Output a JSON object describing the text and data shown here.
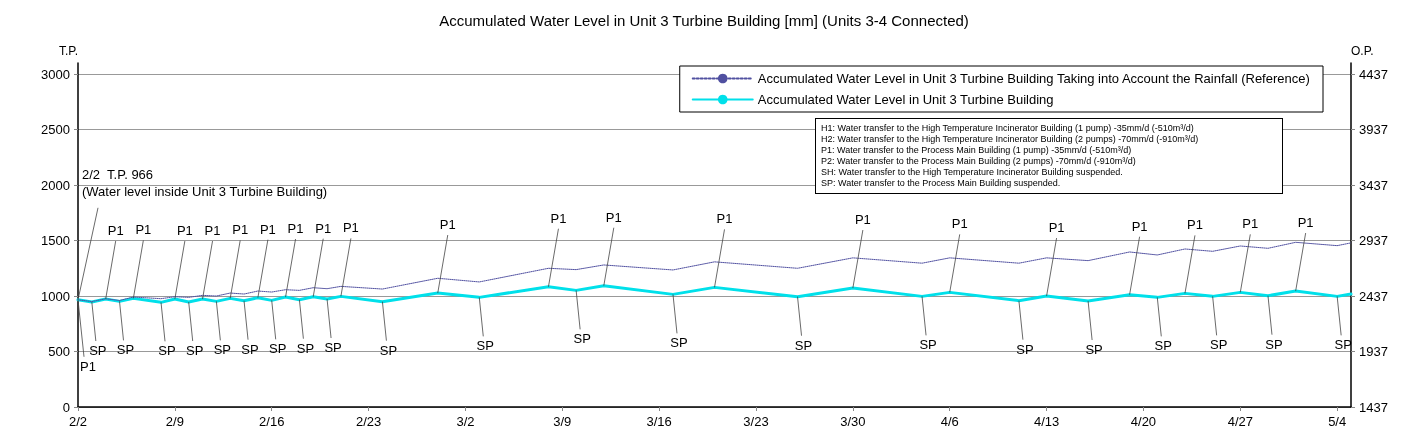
{
  "chart_data": {
    "type": "line",
    "title": "Accumulated Water Level in Unit 3 Turbine Building [mm] (Units 3-4 Connected)",
    "ylabel": "T.P.",
    "y2label": "O.P.",
    "xlim": [
      "--02-02",
      "--05-05"
    ],
    "xticks": [
      {
        "value": "--02-02",
        "label": "2/2"
      },
      {
        "value": "--02-09",
        "label": "2/9"
      },
      {
        "value": "--02-16",
        "label": "2/16"
      },
      {
        "value": "--02-23",
        "label": "2/23"
      },
      {
        "value": "--03-02",
        "label": "3/2"
      },
      {
        "value": "--03-09",
        "label": "3/9"
      },
      {
        "value": "--03-16",
        "label": "3/16"
      },
      {
        "value": "--03-23",
        "label": "3/23"
      },
      {
        "value": "--03-30",
        "label": "3/30"
      },
      {
        "value": "--04-06",
        "label": "4/6"
      },
      {
        "value": "--04-13",
        "label": "4/13"
      },
      {
        "value": "--04-20",
        "label": "4/20"
      },
      {
        "value": "--04-27",
        "label": "4/27"
      },
      {
        "value": "--05-04",
        "label": "5/4"
      }
    ],
    "ylim": [
      0,
      3100
    ],
    "yticks": [
      0,
      500,
      1000,
      1500,
      2000,
      2500,
      3000
    ],
    "y2lim": [
      1437,
      4537
    ],
    "y2ticks": [
      1437,
      1937,
      2437,
      2937,
      3437,
      3937,
      4437
    ],
    "grid": "y",
    "legend": "top right",
    "marker": "none",
    "x": [
      "--02-02",
      "--02-03",
      "--02-04",
      "--02-05",
      "--02-06",
      "--02-08",
      "--02-09",
      "--02-10",
      "--02-11",
      "--02-12",
      "--02-13",
      "--02-14",
      "--02-15",
      "--02-16",
      "--02-17",
      "--02-18",
      "--02-19",
      "--02-20",
      "--02-21",
      "--02-24",
      "--02-28",
      "--03-03",
      "--03-08",
      "--03-10",
      "--03-12",
      "--03-17",
      "--03-20",
      "--03-26",
      "--03-30",
      "--04-04",
      "--04-06",
      "--04-11",
      "--04-13",
      "--04-16",
      "--04-19",
      "--04-21",
      "--04-23",
      "--04-25",
      "--04-27",
      "--04-29",
      "--05-01",
      "--05-04",
      "--05-05"
    ],
    "series": [
      {
        "name": "Accumulated Water Level in Unit 3 Turbine Building Taking into Account the Rainfall (Reference)",
        "color": "#5050a0",
        "line_style": "dotted",
        "values": [
          966,
          950,
          975,
          960,
          991,
          976,
          994,
          988,
          1006,
          1000,
          1027,
          1018,
          1045,
          1036,
          1057,
          1051,
          1075,
          1066,
          1087,
          1063,
          1160,
          1127,
          1250,
          1238,
          1280,
          1235,
          1308,
          1250,
          1344,
          1296,
          1344,
          1296,
          1344,
          1319,
          1397,
          1370,
          1424,
          1403,
          1451,
          1430,
          1484,
          1454,
          1479
        ]
      },
      {
        "name": "Accumulated Water Level in Unit 3 Turbine Building",
        "color": "#00e0ea",
        "line_style": "solid",
        "values": [
          966,
          946,
          973,
          952,
          979,
          943,
          973,
          946,
          973,
          952,
          979,
          958,
          985,
          961,
          991,
          967,
          994,
          973,
          997,
          949,
          1027,
          988,
          1084,
          1051,
          1093,
          1015,
          1078,
          994,
          1072,
          997,
          1033,
          958,
          1000,
          955,
          1012,
          988,
          1024,
          997,
          1033,
          1003,
          1045,
          997,
          1018
        ]
      }
    ],
    "annotations": [
      {
        "text": "2/2  T.P. 966\n(Water level inside Unit 3 Turbine Building)",
        "x": "--02-02",
        "y": 966
      },
      {
        "text": "P1",
        "x": "--02-02",
        "y": 966
      },
      {
        "text": "SP",
        "x": "--02-03",
        "y": 946
      },
      {
        "text": "P1",
        "x": "--02-04",
        "y": 973
      },
      {
        "text": "SP",
        "x": "--02-05",
        "y": 952
      },
      {
        "text": "P1",
        "x": "--02-06",
        "y": 979
      },
      {
        "text": "SP",
        "x": "--02-08",
        "y": 943
      },
      {
        "text": "P1",
        "x": "--02-09",
        "y": 973
      },
      {
        "text": "SP",
        "x": "--02-10",
        "y": 946
      },
      {
        "text": "P1",
        "x": "--02-11",
        "y": 973
      },
      {
        "text": "SP",
        "x": "--02-12",
        "y": 952
      },
      {
        "text": "P1",
        "x": "--02-13",
        "y": 979
      },
      {
        "text": "SP",
        "x": "--02-14",
        "y": 958
      },
      {
        "text": "P1",
        "x": "--02-15",
        "y": 985
      },
      {
        "text": "SP",
        "x": "--02-16",
        "y": 961
      },
      {
        "text": "P1",
        "x": "--02-17",
        "y": 991
      },
      {
        "text": "SP",
        "x": "--02-18",
        "y": 967
      },
      {
        "text": "P1",
        "x": "--02-19",
        "y": 994
      },
      {
        "text": "SP",
        "x": "--02-20",
        "y": 973
      },
      {
        "text": "P1",
        "x": "--02-21",
        "y": 997
      },
      {
        "text": "SP",
        "x": "--02-24",
        "y": 949
      },
      {
        "text": "P1",
        "x": "--02-28",
        "y": 1027
      },
      {
        "text": "SP",
        "x": "--03-03",
        "y": 988
      },
      {
        "text": "P1",
        "x": "--03-08",
        "y": 1084
      },
      {
        "text": "SP",
        "x": "--03-10",
        "y": 1051
      },
      {
        "text": "P1",
        "x": "--03-12",
        "y": 1093
      },
      {
        "text": "SP",
        "x": "--03-17",
        "y": 1015
      },
      {
        "text": "P1",
        "x": "--03-20",
        "y": 1078
      },
      {
        "text": "SP",
        "x": "--03-26",
        "y": 994
      },
      {
        "text": "P1",
        "x": "--03-30",
        "y": 1072
      },
      {
        "text": "SP",
        "x": "--04-04",
        "y": 997
      },
      {
        "text": "P1",
        "x": "--04-06",
        "y": 1033
      },
      {
        "text": "SP",
        "x": "--04-11",
        "y": 958
      },
      {
        "text": "P1",
        "x": "--04-13",
        "y": 1000
      },
      {
        "text": "SP",
        "x": "--04-16",
        "y": 955
      },
      {
        "text": "P1",
        "x": "--04-19",
        "y": 1012
      },
      {
        "text": "SP",
        "x": "--04-21",
        "y": 988
      },
      {
        "text": "P1",
        "x": "--04-23",
        "y": 1024
      },
      {
        "text": "SP",
        "x": "--04-25",
        "y": 997
      },
      {
        "text": "P1",
        "x": "--04-27",
        "y": 1033
      },
      {
        "text": "SP",
        "x": "--04-29",
        "y": 1003
      },
      {
        "text": "P1",
        "x": "--05-01",
        "y": 1045
      },
      {
        "text": "SP",
        "x": "--05-04",
        "y": 997
      },
      "H1: Water transfer to the High Temperature Incinerator Building  (1 pump)  -35mm/d (-510m³/d)",
      "H2: Water transfer to the High Temperature Incinerator Building  (2 pumps)  -70mm/d (-910m³/d)",
      "P1: Water transfer to the Process Main Building (1 pump)  -35mm/d (-510m³/d)",
      "P2: Water transfer to the Process Main Building (2 pumps)  -70mm/d (-910m³/d)",
      "SH: Water transfer to the High Temperature Incinerator Building suspended.",
      "SP: Water transfer to the Process Main Building suspended."
    ]
  }
}
